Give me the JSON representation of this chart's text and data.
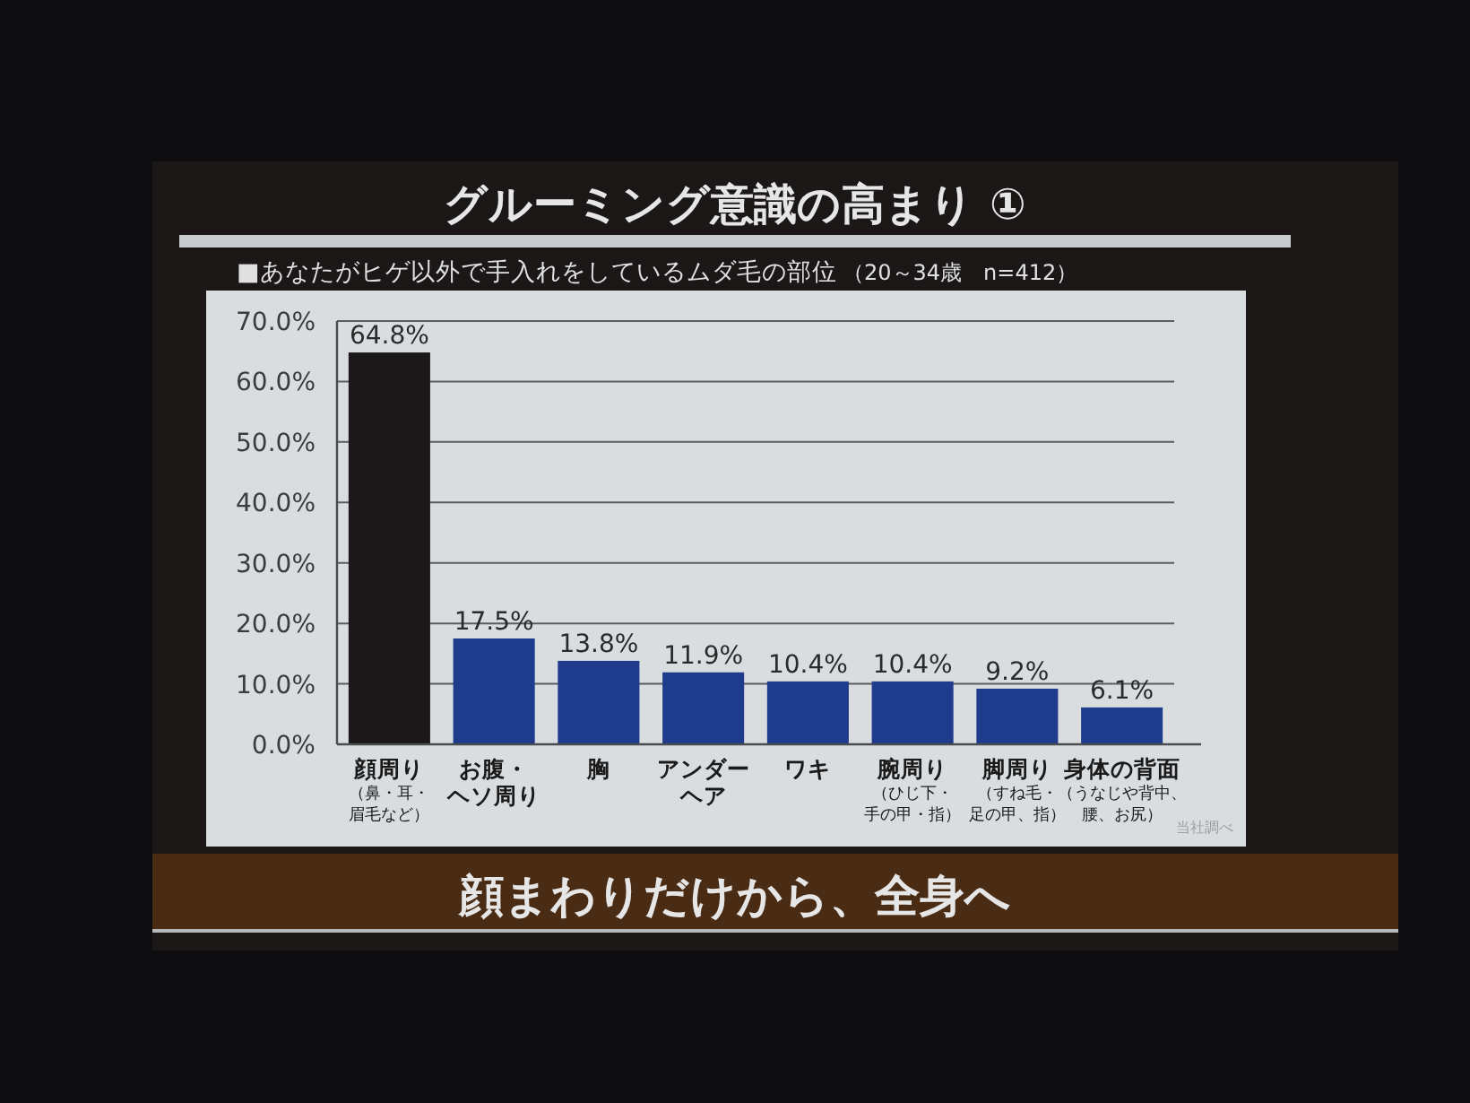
{
  "chart_data": {
    "type": "bar",
    "title": "グルーミング意識の高まり ①",
    "subtitle": "■あなたがヒゲ以外で手入れをしているムダ毛の部位",
    "categories": [
      "顔周り（鼻・耳・眉毛など）",
      "お腹・ヘソ周り",
      "胸",
      "アンダーヘア",
      "ワキ",
      "腕周り（ひじ下・手の甲・指）",
      "脚周り（すね毛・足の甲、指）",
      "身体の背面（うなじや背中、腰、お尻）"
    ],
    "values": [
      64.8,
      17.5,
      13.8,
      11.9,
      10.4,
      10.4,
      9.2,
      6.1
    ],
    "colors": [
      "#1b1819",
      "#1f3b8c",
      "#1f3b8c",
      "#1f3b8c",
      "#1f3b8c",
      "#1f3b8c",
      "#1f3b8c",
      "#1f3b8c"
    ],
    "value_labels": [
      "64.8%",
      "17.5%",
      "13.8%",
      "11.9%",
      "10.4%",
      "10.4%",
      "9.2%",
      "6.1%"
    ],
    "ylim": [
      0,
      70
    ],
    "yticks": [
      {
        "value": 0,
        "label": "0.0%"
      },
      {
        "value": 10,
        "label": "10.0%"
      },
      {
        "value": 20,
        "label": "20.0%"
      },
      {
        "value": 30,
        "label": "30.0%"
      },
      {
        "value": 40,
        "label": "40.0%"
      },
      {
        "value": 50,
        "label": "50.0%"
      },
      {
        "value": 60,
        "label": "60.0%"
      },
      {
        "value": 70,
        "label": "70.0%"
      }
    ],
    "grid": "y",
    "annotations": [
      "（20～34歳　n=412）",
      "顔まわりだけから、全身へ",
      "当社調べ"
    ]
  }
}
